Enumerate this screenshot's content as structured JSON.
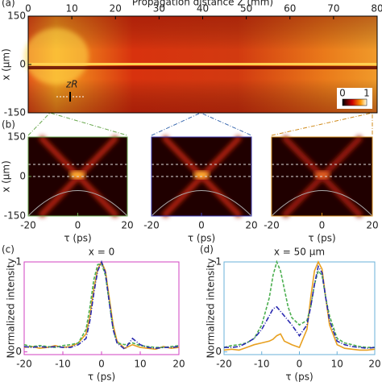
{
  "chart_data": [
    {
      "type": "heatmap",
      "label": "(a)",
      "xlabel": "Propagation distance Z (mm)",
      "ylabel": "x (μm)",
      "xlim": [
        0,
        80
      ],
      "xticks": [
        0,
        10,
        20,
        30,
        40,
        50,
        60,
        70,
        80
      ],
      "xaxis_position": "top",
      "ylim": [
        -150,
        150
      ],
      "yticks": [
        -150,
        0,
        150
      ],
      "annotation": "zR",
      "colorbar_lim": [
        0,
        1
      ],
      "colorbar_ticks": [
        0,
        1
      ],
      "frame_color": "#000000",
      "axis_color": "#000000"
    },
    {
      "type": "heatmap",
      "label": "(b)",
      "xlabel": "τ (ps)",
      "ylabel": "x (μm)",
      "xlim": [
        -20,
        20
      ],
      "xticks": [
        -20,
        0,
        20
      ],
      "ylim": [
        -150,
        150
      ],
      "yticks": [
        -150,
        0,
        150
      ],
      "frame_color": "#6aa84f",
      "axis_color": "#2e8b7a"
    },
    {
      "type": "heatmap",
      "xlabel": "τ (ps)",
      "xlim": [
        -20,
        20
      ],
      "xticks": [
        -20,
        0,
        20
      ],
      "frame_color": "#3b3bb0",
      "axis_color": "#6a3fb0"
    },
    {
      "type": "heatmap",
      "xlabel": "τ (ps)",
      "xlim": [
        -20,
        20
      ],
      "xticks": [
        -20,
        0,
        20
      ],
      "frame_color": "#d08a1a",
      "axis_color": "#d09a30"
    },
    {
      "type": "line",
      "label": "(c)",
      "title": "x = 0",
      "title_color": "#d040c0",
      "xlabel": "τ (ps)",
      "ylabel": "Normalized intensity",
      "xlim": [
        -20,
        20
      ],
      "xticks": [
        -20,
        -10,
        0,
        10,
        20
      ],
      "ylim": [
        -0.03,
        1
      ],
      "yticks": [
        0,
        1
      ],
      "frame_color": "#d040c0",
      "axis_color": "#d040c0",
      "x": [
        -20,
        -18,
        -16,
        -14,
        -12,
        -10,
        -8,
        -6,
        -4,
        -3,
        -2,
        -1,
        0,
        1,
        2,
        3,
        4,
        6,
        8,
        10,
        12,
        14,
        16,
        18,
        20
      ],
      "series": [
        {
          "color": "#e8a020",
          "linestyle": "solid",
          "values": [
            0.05,
            0.06,
            0.04,
            0.05,
            0.07,
            0.05,
            0.06,
            0.1,
            0.2,
            0.4,
            0.7,
            0.92,
            1.0,
            0.9,
            0.6,
            0.3,
            0.12,
            0.04,
            0.08,
            0.05,
            0.04,
            0.03,
            0.06,
            0.04,
            0.05
          ]
        },
        {
          "color": "#4caf50",
          "linestyle": "dashed",
          "values": [
            0.08,
            0.06,
            0.07,
            0.06,
            0.05,
            0.07,
            0.08,
            0.1,
            0.25,
            0.5,
            0.8,
            0.97,
            0.98,
            0.85,
            0.55,
            0.25,
            0.1,
            0.08,
            0.1,
            0.07,
            0.06,
            0.05,
            0.05,
            0.06,
            0.07
          ]
        },
        {
          "color": "#2a2ab0",
          "linestyle": "dashdot",
          "values": [
            0.06,
            0.05,
            0.06,
            0.05,
            0.06,
            0.05,
            0.05,
            0.08,
            0.15,
            0.35,
            0.65,
            0.9,
            1.0,
            0.88,
            0.55,
            0.25,
            0.1,
            0.03,
            0.15,
            0.08,
            0.05,
            0.04,
            0.05,
            0.05,
            0.06
          ]
        }
      ]
    },
    {
      "type": "line",
      "label": "(d)",
      "title": "x = 50 μm",
      "title_color": "#6ab0d8",
      "xlabel": "τ (ps)",
      "ylabel": "Normalized intensity",
      "xlim": [
        -20,
        20
      ],
      "xticks": [
        -20,
        -10,
        0,
        10,
        20
      ],
      "ylim": [
        -0.03,
        1
      ],
      "yticks": [
        0,
        1
      ],
      "frame_color": "#6ab0d8",
      "axis_color": "#6ab0d8",
      "x": [
        -20,
        -18,
        -16,
        -14,
        -12,
        -10,
        -8,
        -7,
        -6,
        -5,
        -4,
        -3,
        -2,
        0,
        2,
        3,
        4,
        5,
        6,
        7,
        8,
        10,
        12,
        14,
        16,
        18,
        20
      ],
      "series": [
        {
          "color": "#e8a020",
          "linestyle": "solid",
          "values": [
            0.02,
            0.03,
            0.02,
            0.05,
            0.08,
            0.1,
            0.12,
            0.14,
            0.18,
            0.2,
            0.12,
            0.1,
            0.08,
            0.05,
            0.25,
            0.6,
            0.9,
            1.0,
            0.92,
            0.6,
            0.3,
            0.08,
            0.04,
            0.03,
            0.02,
            0.02,
            0.03
          ]
        },
        {
          "color": "#4caf50",
          "linestyle": "dashed",
          "values": [
            0.05,
            0.07,
            0.08,
            0.1,
            0.15,
            0.3,
            0.6,
            0.85,
            1.0,
            0.9,
            0.7,
            0.5,
            0.38,
            0.3,
            0.35,
            0.5,
            0.75,
            0.9,
            0.85,
            0.6,
            0.4,
            0.15,
            0.1,
            0.08,
            0.06,
            0.05,
            0.05
          ]
        },
        {
          "color": "#2a2ab0",
          "linestyle": "dashdot",
          "values": [
            0.05,
            0.05,
            0.06,
            0.1,
            0.15,
            0.25,
            0.4,
            0.48,
            0.5,
            0.45,
            0.4,
            0.35,
            0.3,
            0.18,
            0.3,
            0.5,
            0.75,
            0.95,
            0.88,
            0.6,
            0.35,
            0.12,
            0.08,
            0.06,
            0.05,
            0.04,
            0.05
          ]
        }
      ]
    }
  ]
}
